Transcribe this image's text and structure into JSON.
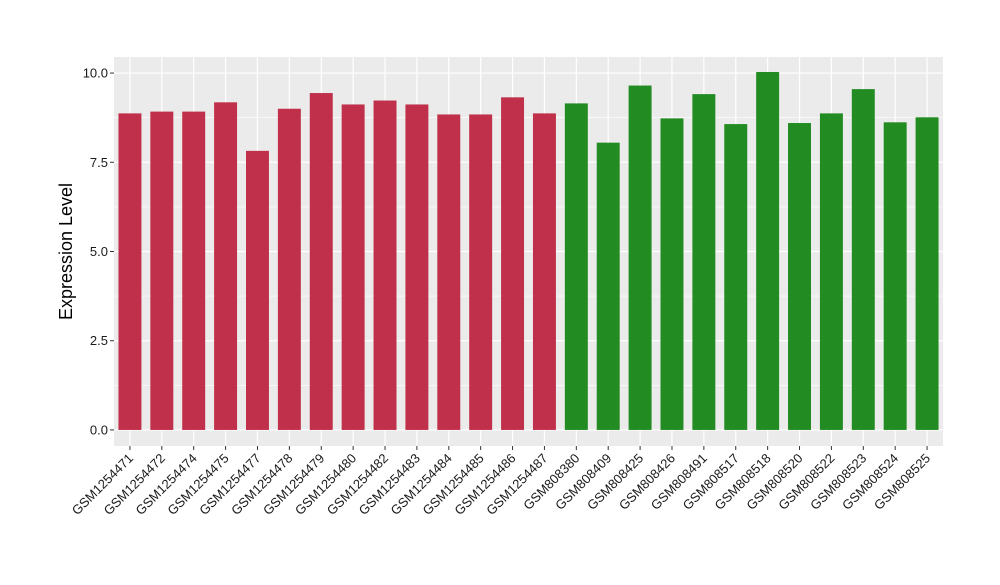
{
  "chart_data": {
    "type": "bar",
    "title": "",
    "xlabel": "",
    "ylabel": "Expression Level",
    "ylim": [
      -0.45,
      10.45
    ],
    "yticks": [
      "0.0",
      "2.5",
      "5.0",
      "7.5",
      "10.0"
    ],
    "ytick_values": [
      0,
      2.5,
      5,
      7.5,
      10
    ],
    "grid": true,
    "legend": "none",
    "panel_color": "#ebebeb",
    "grid_color": "#ffffff",
    "categories": [
      "GSM1254471",
      "GSM1254472",
      "GSM1254474",
      "GSM1254475",
      "GSM1254477",
      "GSM1254478",
      "GSM1254479",
      "GSM1254480",
      "GSM1254482",
      "GSM1254483",
      "GSM1254484",
      "GSM1254485",
      "GSM1254486",
      "GSM1254487",
      "GSM808380",
      "GSM808409",
      "GSM808425",
      "GSM808426",
      "GSM808491",
      "GSM808517",
      "GSM808518",
      "GSM808520",
      "GSM808522",
      "GSM808523",
      "GSM808524",
      "GSM808525"
    ],
    "values": [
      8.87,
      8.92,
      8.92,
      9.18,
      7.82,
      9.0,
      9.44,
      9.12,
      9.23,
      9.12,
      8.84,
      8.84,
      9.32,
      8.87,
      9.15,
      8.05,
      9.65,
      8.73,
      9.41,
      8.57,
      10.03,
      8.6,
      8.87,
      9.55,
      8.62,
      8.76
    ],
    "colors": [
      "#c0304a",
      "#c0304a",
      "#c0304a",
      "#c0304a",
      "#c0304a",
      "#c0304a",
      "#c0304a",
      "#c0304a",
      "#c0304a",
      "#c0304a",
      "#c0304a",
      "#c0304a",
      "#c0304a",
      "#c0304a",
      "#228b22",
      "#228b22",
      "#228b22",
      "#228b22",
      "#228b22",
      "#228b22",
      "#228b22",
      "#228b22",
      "#228b22",
      "#228b22",
      "#228b22",
      "#228b22"
    ]
  }
}
